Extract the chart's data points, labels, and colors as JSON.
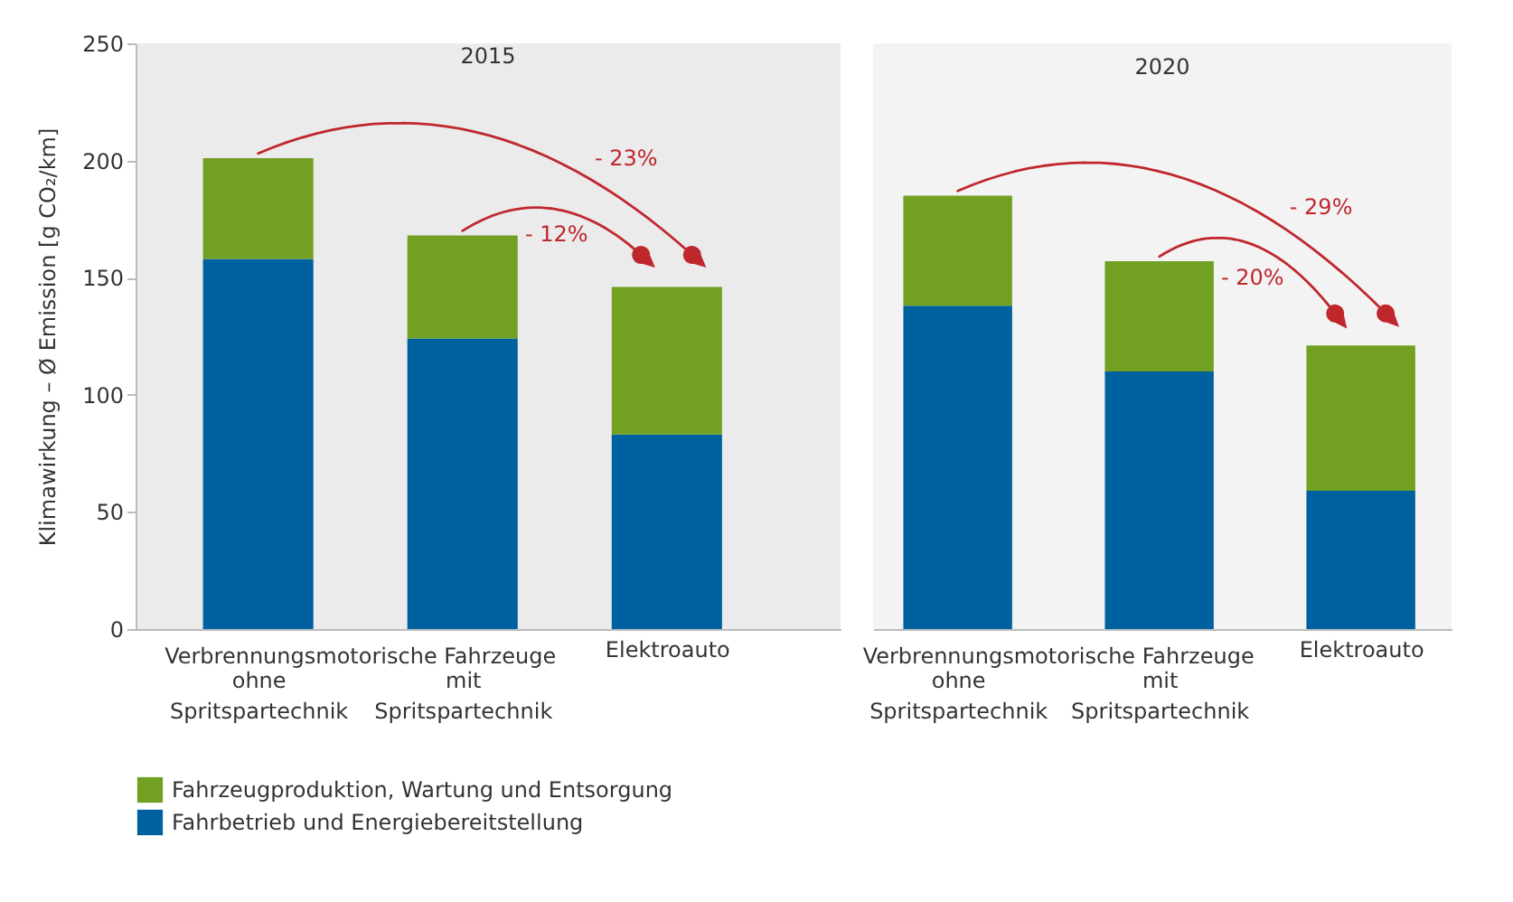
{
  "chart_data": [
    {
      "type": "bar",
      "title": "2015",
      "stacked": true,
      "categories": [
        "ohne Spritspartechnik",
        "mit Spritspartechnik",
        "Elektroauto"
      ],
      "series": [
        {
          "name": "Fahrbetrieb und Energiebereitstellung",
          "color": "#0061a0",
          "values": [
            158,
            124,
            83
          ]
        },
        {
          "name": "Fahrzeugproduktion, Wartung und Entsorgung",
          "color": "#72a022",
          "values": [
            43,
            44,
            63
          ]
        }
      ],
      "ylabel": "Klimawirkung – Ø Emission [g CO₂/km]",
      "ylim": [
        0,
        250
      ],
      "yticks": [
        0,
        50,
        100,
        150,
        200,
        250
      ],
      "grid": false,
      "legend": "bottom left",
      "annotations": [
        "- 23%",
        "- 12%",
        "Verbrennungsmotorische Fahrzeuge"
      ]
    },
    {
      "type": "bar",
      "title": "2020",
      "stacked": true,
      "categories": [
        "ohne Spritspartechnik",
        "mit Spritspartechnik",
        "Elektroauto"
      ],
      "series": [
        {
          "name": "Fahrbetrieb und Energiebereitstellung",
          "color": "#0061a0",
          "values": [
            138,
            110,
            59
          ]
        },
        {
          "name": "Fahrzeugproduktion, Wartung und Entsorgung",
          "color": "#72a022",
          "values": [
            47,
            47,
            62
          ]
        }
      ],
      "ylim": [
        0,
        250
      ],
      "yticks": [
        0,
        50,
        100,
        150,
        200,
        250
      ],
      "grid": false,
      "tick_labels": "x",
      "annotations": [
        "- 29%",
        "- 20%",
        "Verbrennungsmotorische Fahrzeuge"
      ]
    }
  ]
}
